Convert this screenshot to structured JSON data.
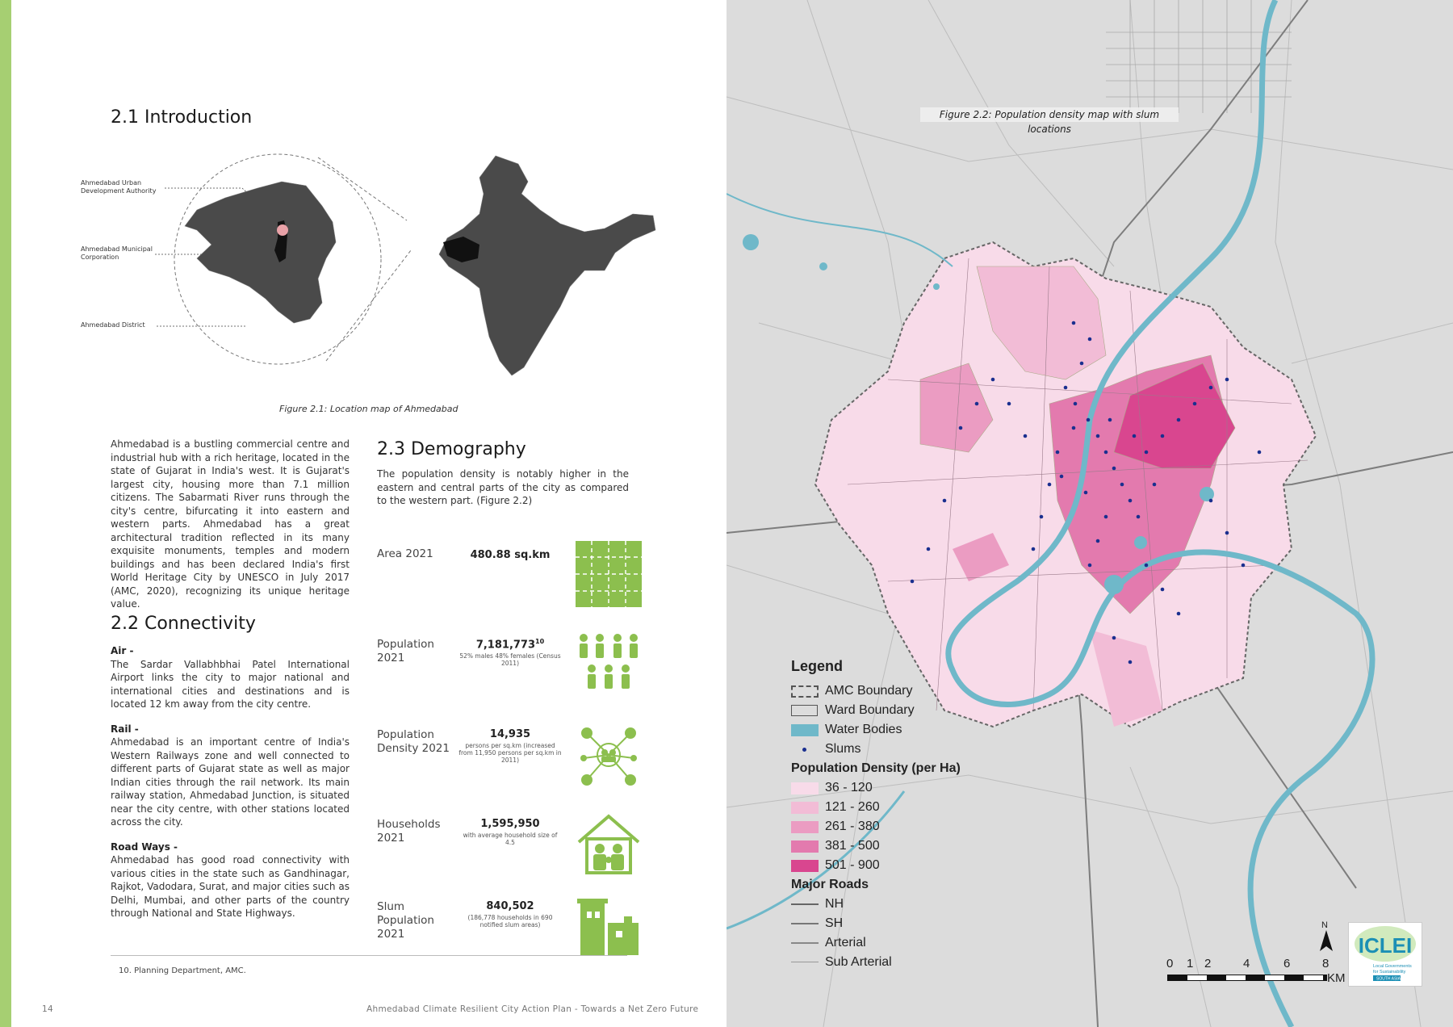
{
  "left": {
    "intro_heading": "2.1 Introduction",
    "map_labels": {
      "auda": "Ahmedabad Urban Development Authority",
      "amc": "Ahmedabad Municipal Corporation",
      "district": "Ahmedabad District"
    },
    "figure_caption": "Figure 2.1: Location map of Ahmedabad",
    "intro_paragraph": "Ahmedabad is a bustling commercial centre and industrial hub with a rich heritage, located in the state of Gujarat in India's west. It is Gujarat's largest city, housing more than 7.1 million citizens. The Sabarmati River runs through the city's centre, bifurcating it into eastern and western parts. Ahmedabad has a great architectural tradition reflected in its many exquisite monuments, temples and modern buildings and has been declared India's first World Heritage City by UNESCO in July 2017 (AMC, 2020), recognizing its unique heritage value.",
    "connectivity_heading": "2.2 Connectivity",
    "connectivity": [
      {
        "title": "Air -",
        "text": "The Sardar Vallabhbhai Patel International Airport links the city to major national and international cities and destinations and is located 12 km away from the city centre."
      },
      {
        "title": "Rail -",
        "text": "Ahmedabad is an important centre of India's Western Railways zone and well connected to different parts of Gujarat state as well as major Indian cities through the rail network. Its main railway station, Ahmedabad Junction, is situated near the city centre, with other stations located across the city."
      },
      {
        "title": "Road Ways -",
        "text": "Ahmedabad has good road connectivity with various cities in the state such as Gandhinagar, Rajkot, Vadodara, Surat, and major cities such as Delhi, Mumbai, and other parts of the country through National and State Highways."
      }
    ],
    "demography_heading": "2.3 Demography",
    "demography_intro": "The population density is notably higher in the eastern and central parts of the city as compared to the western part. (Figure 2.2)",
    "stats": [
      {
        "label": "Area 2021",
        "value": "480.88 sq.km",
        "sup": "",
        "sub": ""
      },
      {
        "label": "Population 2021",
        "value": "7,181,773",
        "sup": "10",
        "sub": "52% males 48% females (Census 2011)"
      },
      {
        "label": "Population Density 2021",
        "value": "14,935",
        "sup": "",
        "sub": "persons per sq.km (increased from 11,950 persons per sq.km in 2011)"
      },
      {
        "label": "Households 2021",
        "value": "1,595,950",
        "sup": "",
        "sub": "with average household size of 4.5"
      },
      {
        "label": "Slum Population 2021",
        "value": "840,502",
        "sup": "",
        "sub": "(186,778 households in 690 notified slum areas)"
      }
    ],
    "footnote": "10.  Planning Department, AMC.",
    "page_number": "14",
    "footer_title": "Ahmedabad Climate Resilient City Action Plan - Towards a Net Zero Future"
  },
  "right": {
    "figure_caption": "Figure 2.2: Population density map with slum locations",
    "legend": {
      "title": "Legend",
      "items": [
        "AMC Boundary",
        "Ward Boundary",
        "Water Bodies",
        "Slums"
      ],
      "density_title": "Population Density (per Ha)",
      "density_classes": [
        {
          "label": "36 - 120",
          "color": "#f8dbe9"
        },
        {
          "label": "121 - 260",
          "color": "#f2bcd6"
        },
        {
          "label": "261 - 380",
          "color": "#eb9cc2"
        },
        {
          "label": "381 - 500",
          "color": "#e37aae"
        },
        {
          "label": "501 - 900",
          "color": "#d9468f"
        }
      ],
      "roads_title": "Major Roads",
      "roads": [
        "NH",
        "SH",
        "Arterial",
        "Sub Arterial"
      ]
    },
    "scale": {
      "ticks": [
        "0",
        "1",
        "2",
        "4",
        "6",
        "8"
      ],
      "unit": "KM",
      "north": "N"
    },
    "logo": {
      "name": "ICLEI",
      "line1": "Local Governments",
      "line2": "for Sustainability",
      "line3": "SOUTH ASIA"
    },
    "colors": {
      "water": "#6fb8c9",
      "slum": "#1a2f8f",
      "accent_green": "#8cbf4e",
      "map_bg": "#dcdcdc"
    }
  }
}
